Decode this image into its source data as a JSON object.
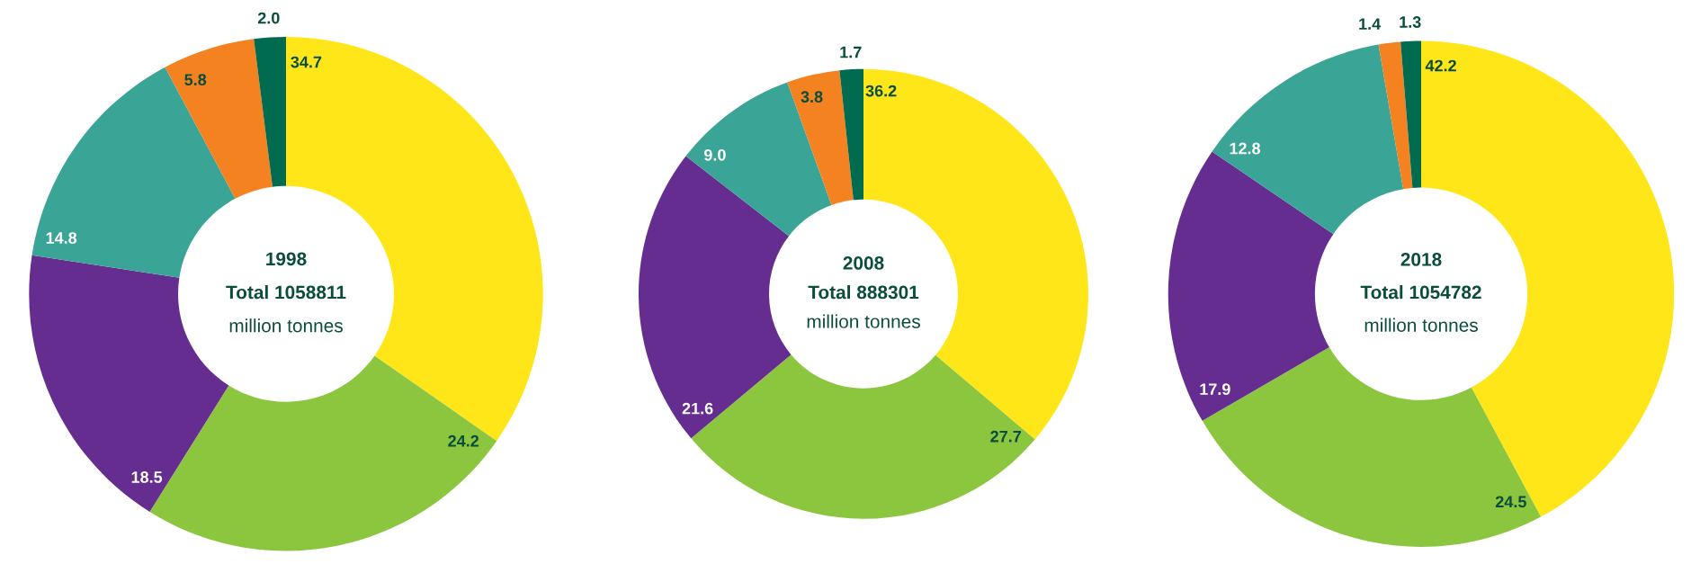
{
  "chart_data": [
    {
      "type": "donut",
      "title": "1998",
      "subtitle": "Total 1058811",
      "annotations": [
        "million tonnes"
      ],
      "categories": [
        null,
        null,
        null,
        null,
        null,
        null
      ],
      "values": [
        34.7,
        24.2,
        18.5,
        14.8,
        5.8,
        2.0
      ],
      "value_labels": [
        "34.7",
        "24.2",
        "18.5",
        "14.8",
        "5.8",
        "2.0"
      ],
      "colors": [
        "#ffe619",
        "#8cc63f",
        "#662d91",
        "#3aa596",
        "#f58220",
        "#006b4f"
      ]
    },
    {
      "type": "donut",
      "title": "2008",
      "subtitle": "Total 888301",
      "annotations": [
        "million tonnes"
      ],
      "categories": [
        null,
        null,
        null,
        null,
        null,
        null
      ],
      "values": [
        36.2,
        27.7,
        21.6,
        9.0,
        3.8,
        1.7
      ],
      "value_labels": [
        "36.2",
        "27.7",
        "21.6",
        "9.0",
        "3.8",
        "1.7"
      ],
      "colors": [
        "#ffe619",
        "#8cc63f",
        "#662d91",
        "#3aa596",
        "#f58220",
        "#006b4f"
      ]
    },
    {
      "type": "donut",
      "title": "2018",
      "subtitle": "Total 1054782",
      "annotations": [
        "million tonnes"
      ],
      "categories": [
        null,
        null,
        null,
        null,
        null,
        null
      ],
      "values": [
        42.2,
        24.5,
        17.9,
        12.8,
        1.4,
        1.3
      ],
      "value_labels": [
        "42.2",
        "24.5",
        "17.9",
        "12.8",
        "1.4",
        "1.3"
      ],
      "colors": [
        "#ffe619",
        "#8cc63f",
        "#662d91",
        "#3aa596",
        "#f58220",
        "#006b4f"
      ]
    }
  ]
}
